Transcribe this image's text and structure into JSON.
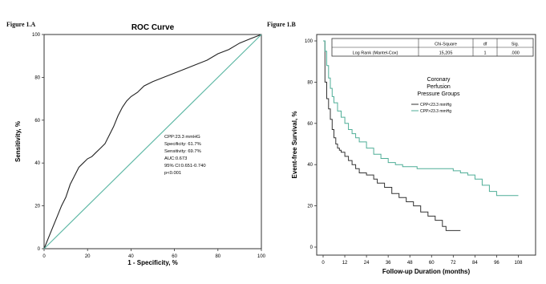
{
  "figure_a_label": "Figure 1.A",
  "figure_b_label": "Figure 1.B",
  "chart_data": [
    {
      "type": "line",
      "title": "ROC Curve",
      "xlabel": "1 - Specificity, %",
      "ylabel": "Sensitivity, %",
      "xlim": [
        0,
        100
      ],
      "ylim": [
        0,
        100
      ],
      "x_ticks": [
        "0",
        "20",
        "40",
        "60",
        "80",
        "100"
      ],
      "y_ticks": [
        "0",
        "20",
        "40",
        "60",
        "80",
        "100"
      ],
      "grid": false,
      "annotation": [
        "CPP:23.3 mmHG",
        "Specificity: 61.7%",
        "Sensitivity: 69.7%",
        "AUC:0.673",
        "95% CI:0.651-0.740",
        "p<0.001"
      ],
      "colors": {
        "roc": "#222222",
        "reference": "#5fb8a5"
      },
      "series": [
        {
          "role": "roc",
          "x": [
            0,
            2,
            4,
            6,
            8,
            10,
            12,
            14,
            16,
            18,
            20,
            22,
            24,
            26,
            28,
            30,
            32,
            34,
            36,
            38,
            40,
            43,
            46,
            50,
            55,
            60,
            65,
            70,
            75,
            80,
            85,
            90,
            95,
            100
          ],
          "y": [
            0,
            5,
            10,
            15,
            20,
            24,
            30,
            34,
            38,
            40,
            42,
            43,
            45,
            47,
            49,
            53,
            57,
            62,
            66,
            69,
            71,
            73,
            76,
            78,
            80,
            82,
            84,
            86,
            88,
            91,
            93,
            96,
            98,
            100
          ]
        },
        {
          "role": "reference",
          "x": [
            0,
            100
          ],
          "y": [
            0,
            100
          ]
        }
      ]
    },
    {
      "type": "line",
      "title": "",
      "xlabel": "Follow-up Duration (months)",
      "ylabel": "Event-free Survival, %",
      "xlim": [
        0,
        114
      ],
      "ylim": [
        0,
        100
      ],
      "x_ticks": [
        "0",
        "12",
        "24",
        "36",
        "48",
        "60",
        "72",
        "84",
        "96",
        "108"
      ],
      "y_ticks": [
        "0",
        "20",
        "40",
        "60",
        "80",
        "100"
      ],
      "grid": false,
      "legend_title": [
        "Coronary",
        "Perfusion",
        "Pressure Groups"
      ],
      "legend_position": "upper-right",
      "table": {
        "headers": [
          "",
          "Chi-Square",
          "df",
          "Sig."
        ],
        "row": [
          "Log Rank (Mantel-Cox)",
          "15,205",
          "1",
          ".000"
        ]
      },
      "series": [
        {
          "name": "CPP<23.3 mmHg",
          "color": "#333333",
          "x": [
            0,
            1,
            2,
            3,
            4,
            5,
            6,
            7,
            8,
            9,
            10,
            12,
            14,
            16,
            18,
            20,
            24,
            28,
            30,
            34,
            38,
            42,
            46,
            50,
            54,
            58,
            62,
            66,
            68,
            72,
            76
          ],
          "y": [
            100,
            80,
            72,
            67,
            62,
            57,
            53,
            50,
            48,
            47,
            46,
            44,
            42,
            40,
            38,
            36,
            35,
            33,
            31,
            29,
            26,
            24,
            22,
            20,
            17,
            15,
            13,
            10,
            8,
            8,
            8
          ]
        },
        {
          "name": "CPP>23.3 mmHg",
          "color": "#4fae97",
          "x": [
            0,
            1,
            2,
            3,
            4,
            5,
            6,
            8,
            10,
            12,
            14,
            16,
            18,
            20,
            24,
            28,
            32,
            36,
            40,
            44,
            48,
            52,
            56,
            60,
            64,
            68,
            72,
            76,
            80,
            84,
            88,
            92,
            96,
            100,
            104,
            108
          ],
          "y": [
            100,
            95,
            88,
            82,
            77,
            73,
            70,
            66,
            63,
            60,
            57,
            55,
            53,
            51,
            48,
            45,
            43,
            41,
            40,
            39,
            39,
            38,
            38,
            38,
            38,
            38,
            37,
            36,
            35,
            33,
            30,
            27,
            25,
            25,
            25,
            25
          ]
        }
      ]
    }
  ]
}
